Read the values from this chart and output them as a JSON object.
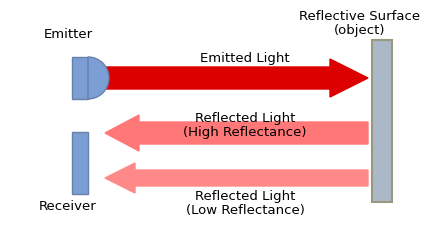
{
  "bg_color": "#ffffff",
  "emitter_color": "#7b9fd4",
  "receiver_color": "#7b9fd4",
  "surface_edge_color": "#999980",
  "surface_fill": "#aab8c8",
  "arrow_emitted_color": "#dd0000",
  "arrow_reflected_high_color": "#ff7777",
  "arrow_reflected_low_color": "#ff8888",
  "label_color": "#000000",
  "emitter_label": "Emitter",
  "receiver_label": "Receiver",
  "surface_label_line1": "Reflective Surface",
  "surface_label_line2": "(object)",
  "emitted_label": "Emitted Light",
  "reflected_high_label_line1": "Reflected Light",
  "reflected_high_label_line2": "(High Reflectance)",
  "reflected_low_label_line1": "Reflected Light",
  "reflected_low_label_line2": "(Low Reflectance)",
  "label_fontsize": 9.5,
  "figw": 4.45,
  "figh": 2.42,
  "dpi": 100
}
